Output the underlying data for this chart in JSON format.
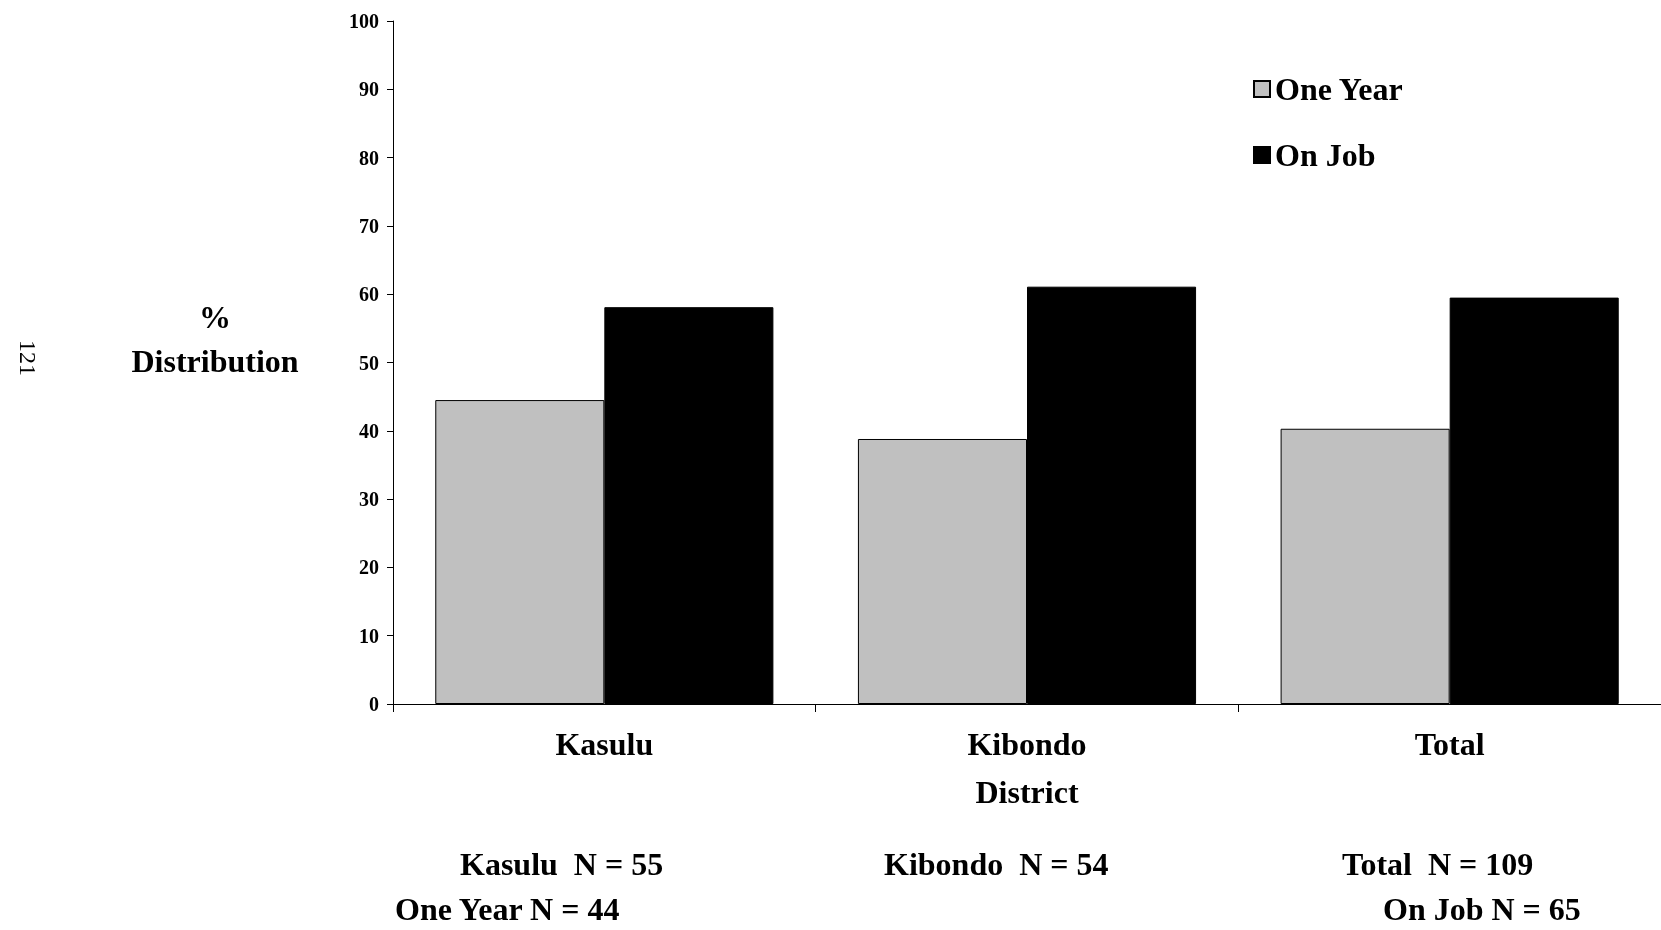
{
  "chart_data": {
    "type": "bar",
    "xlabel": "District",
    "ylabel": "%\nDistribution",
    "categories": [
      "Kasulu",
      "Kibondo",
      "Total"
    ],
    "series": [
      {
        "name": "One Year",
        "color": "#c0c0c0",
        "values": [
          44.5,
          38.8,
          40.3
        ]
      },
      {
        "name": "On Job",
        "color": "#000000",
        "values": [
          58.1,
          61.1,
          59.5
        ]
      }
    ],
    "ylim": [
      0,
      100
    ],
    "yticks": [
      0,
      10,
      20,
      30,
      40,
      50,
      60,
      70,
      80,
      90,
      100
    ],
    "grid": false,
    "legend": "top right",
    "annotations": [
      "121",
      "Kasulu  N = 55",
      "One Year N = 44",
      "Kibondo  N = 54",
      "Total  N = 109",
      "On Job N = 65"
    ]
  }
}
